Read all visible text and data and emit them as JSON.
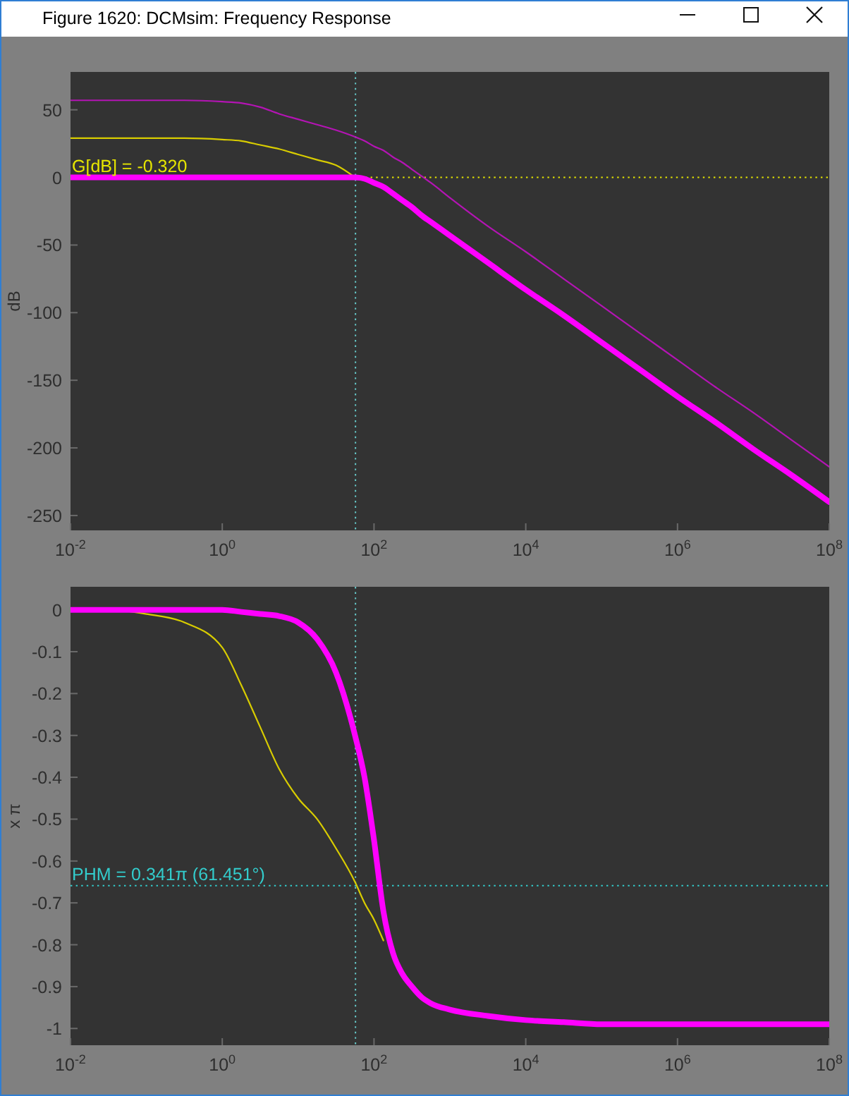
{
  "chart_data": [
    {
      "type": "line",
      "title": "Figure 1620: DCMsim: Frequency Response",
      "ylabel": "dB",
      "log": "x",
      "xlim": [
        0.01,
        100000000
      ],
      "xticks": [
        {
          "value": 0.01,
          "label": "10$^{-2}$"
        },
        {
          "value": 1,
          "label": "10$^{0}$"
        },
        {
          "value": 100,
          "label": "10$^{2}$"
        },
        {
          "value": 10000,
          "label": "10$^{4}$"
        },
        {
          "value": 1000000,
          "label": "10$^{6}$"
        },
        {
          "value": 100000000,
          "label": "10$^{8}$"
        }
      ],
      "ylim": [
        -261,
        78
      ],
      "yticks": [
        -250,
        -200,
        -150,
        -100,
        -50,
        0,
        50
      ],
      "x": [
        0.01,
        0.0316,
        0.1,
        0.316,
        1,
        1.78,
        3.16,
        5.62,
        10,
        17.8,
        31.6,
        56.2,
        75,
        100,
        133,
        178,
        237,
        316,
        422,
        562,
        1000,
        3160,
        10000,
        31600,
        100000,
        316000,
        1000000,
        3160000,
        10000000,
        31600000,
        100000000
      ],
      "series": [
        {
          "color": "#d8cc00",
          "values": [
            29,
            29,
            29,
            29,
            28,
            27,
            24,
            21,
            17,
            13,
            9,
            0,
            null,
            null,
            null,
            null,
            null,
            null,
            null,
            null,
            null,
            null,
            null,
            null,
            null,
            null,
            null,
            null,
            null,
            null,
            null
          ]
        },
        {
          "color": "#b414b4",
          "values": [
            57,
            57,
            57,
            57,
            56,
            55,
            52,
            47,
            43,
            39,
            35,
            30,
            27,
            23,
            20,
            15,
            11,
            6,
            1,
            -4,
            -15,
            -36,
            -55,
            -75,
            -95,
            -115,
            -135,
            -155,
            -174,
            -194,
            -214
          ]
        },
        {
          "color": "#ff00ff",
          "values": [
            0,
            0,
            0,
            0,
            0,
            0,
            0,
            0,
            0,
            0,
            0,
            0,
            -1,
            -4,
            -7,
            -12,
            -17,
            -22,
            -28,
            -33,
            -43,
            -63,
            -83,
            -102,
            -122,
            -142,
            -162,
            -181,
            -201,
            -220,
            -240
          ]
        }
      ],
      "ref_lines": [
        {
          "axis": "x",
          "value": 57,
          "color": "#66c8c8",
          "line_style": "dotted"
        },
        {
          "axis": "y",
          "value": 0,
          "color": "#e6e600",
          "line_style": "dotted"
        }
      ],
      "annotations": [
        "G[dB] = -0.320"
      ]
    },
    {
      "type": "line",
      "ylabel": "x π",
      "log": "x",
      "xlim": [
        0.01,
        100000000
      ],
      "xticks": [
        {
          "value": 0.01,
          "label": "10$^{-2}$"
        },
        {
          "value": 1,
          "label": "10$^{0}$"
        },
        {
          "value": 100,
          "label": "10$^{2}$"
        },
        {
          "value": 10000,
          "label": "10$^{4}$"
        },
        {
          "value": 1000000,
          "label": "10$^{6}$"
        },
        {
          "value": 100000000,
          "label": "10$^{8}$"
        }
      ],
      "ylim": [
        -1.04,
        0.055
      ],
      "yticks": [
        -1,
        -0.9,
        -0.8,
        -0.7,
        -0.6,
        -0.5,
        -0.4,
        -0.3,
        -0.2,
        -0.1,
        0
      ],
      "x": [
        0.01,
        0.0316,
        0.1,
        0.316,
        1,
        1.78,
        3.16,
        5.62,
        10,
        17.8,
        31.6,
        56.2,
        75,
        100,
        133,
        178,
        237,
        316,
        422,
        562,
        1000,
        3160,
        10000,
        31600,
        100000,
        316000,
        1000000,
        3160000,
        10000000,
        31600000,
        100000000
      ],
      "series": [
        {
          "color": "#d8cc00",
          "values": [
            0,
            0,
            -0.01,
            -0.03,
            -0.09,
            -0.18,
            -0.28,
            -0.38,
            -0.45,
            -0.5,
            -0.57,
            -0.65,
            -0.7,
            -0.74,
            -0.79,
            null,
            null,
            null,
            null,
            null,
            null,
            null,
            null,
            null,
            null,
            null,
            null,
            null,
            null,
            null,
            null
          ]
        },
        {
          "color": "#ff00ff",
          "values": [
            0,
            0,
            0,
            0,
            0,
            -0.005,
            -0.01,
            -0.015,
            -0.03,
            -0.07,
            -0.15,
            -0.3,
            -0.4,
            -0.55,
            -0.72,
            -0.82,
            -0.87,
            -0.9,
            -0.925,
            -0.94,
            -0.955,
            -0.97,
            -0.98,
            -0.985,
            -0.99,
            -0.99,
            -0.99,
            -0.99,
            -0.99,
            -0.99,
            -0.99
          ]
        }
      ],
      "ref_lines": [
        {
          "axis": "x",
          "value": 57,
          "color": "#66c8c8",
          "line_style": "dotted"
        },
        {
          "axis": "y",
          "value": -0.659,
          "color": "#33cccc",
          "line_style": "dotted"
        }
      ],
      "annotations": [
        "PHM = 0.341π (61.451°)"
      ]
    }
  ]
}
